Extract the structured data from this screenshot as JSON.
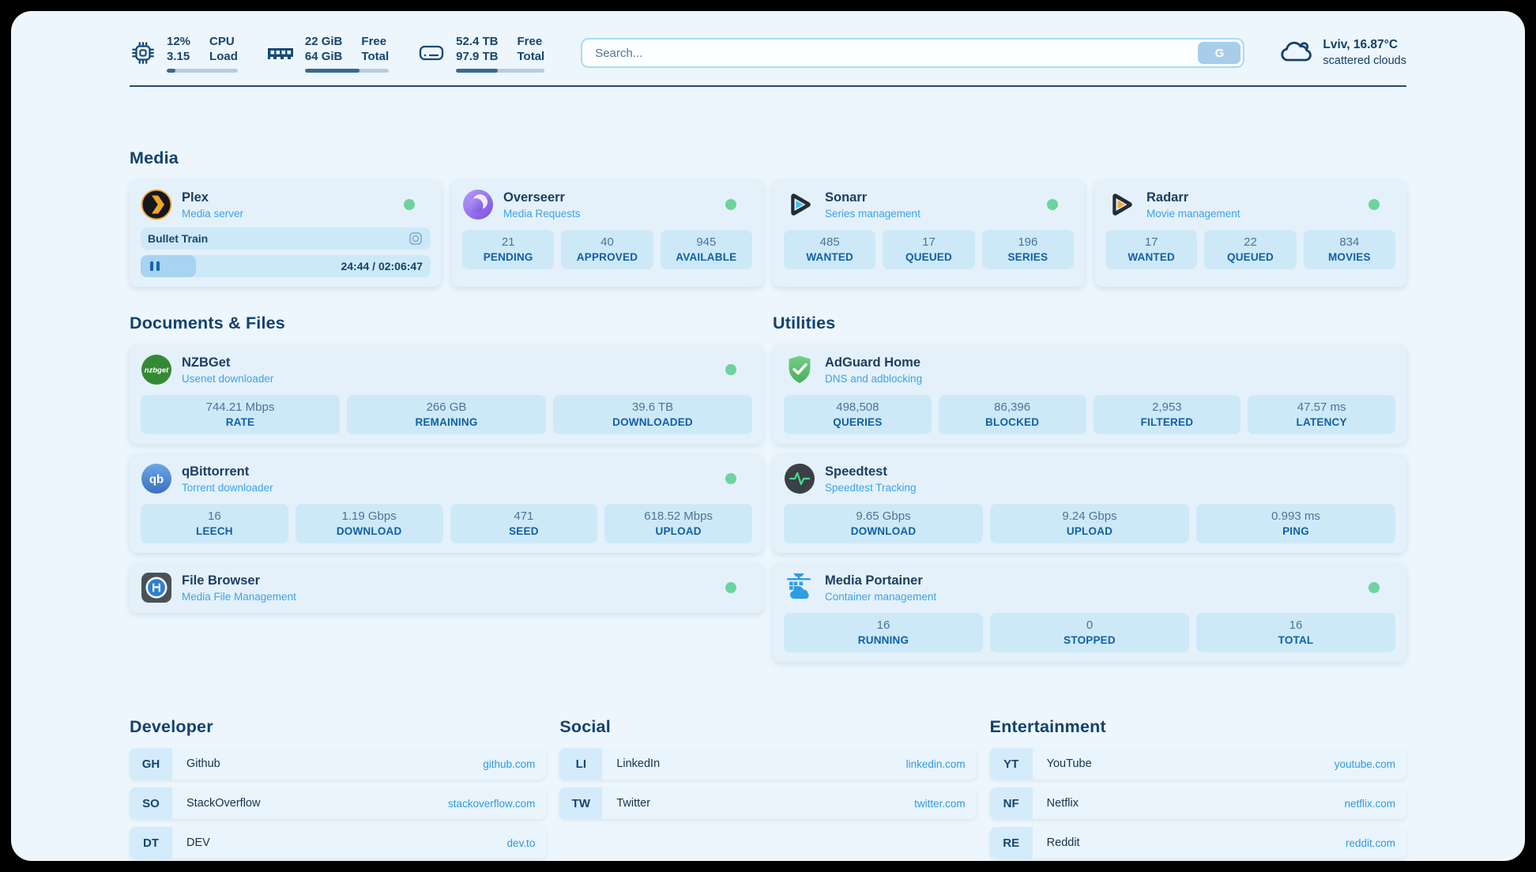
{
  "colors": {
    "page_bg": "#edf6fc",
    "card_bg": "#e4f1fa",
    "pill_bg": "#cde9f8",
    "accent_navy": "#16456f",
    "subtitle_blue": "#3ea2e8",
    "link_blue": "#2d9ae3",
    "online_green": "#6cd49c",
    "progress_fill": "#39688f"
  },
  "header": {
    "system_stats": [
      {
        "id": "cpu",
        "values": [
          "12%",
          "3.15"
        ],
        "labels": [
          "CPU",
          "Load"
        ],
        "progress_pct": 12
      },
      {
        "id": "memory",
        "values": [
          "22 GiB",
          "64 GiB"
        ],
        "labels": [
          "Free",
          "Total"
        ],
        "progress_pct": 65
      },
      {
        "id": "disk",
        "values": [
          "52.4 TB",
          "97.9 TB"
        ],
        "labels": [
          "Free",
          "Total"
        ],
        "progress_pct": 47
      }
    ],
    "search": {
      "placeholder": "Search...",
      "button_label": "G"
    },
    "weather": {
      "location_temp": "Lviv, 16.87°C",
      "condition": "scattered clouds"
    }
  },
  "sections": {
    "media": {
      "title": "Media",
      "apps": [
        {
          "name": "Plex",
          "subtitle": "Media server",
          "online": true,
          "now_playing": {
            "title": "Bullet Train",
            "time": "24:44 / 02:06:47",
            "progress_pct": 19
          }
        },
        {
          "name": "Overseerr",
          "subtitle": "Media Requests",
          "online": true,
          "stats": [
            {
              "value": "21",
              "label": "PENDING"
            },
            {
              "value": "40",
              "label": "APPROVED"
            },
            {
              "value": "945",
              "label": "AVAILABLE"
            }
          ]
        },
        {
          "name": "Sonarr",
          "subtitle": "Series management",
          "online": true,
          "stats": [
            {
              "value": "485",
              "label": "WANTED"
            },
            {
              "value": "17",
              "label": "QUEUED"
            },
            {
              "value": "196",
              "label": "SERIES"
            }
          ]
        },
        {
          "name": "Radarr",
          "subtitle": "Movie management",
          "online": true,
          "stats": [
            {
              "value": "17",
              "label": "WANTED"
            },
            {
              "value": "22",
              "label": "QUEUED"
            },
            {
              "value": "834",
              "label": "MOVIES"
            }
          ]
        }
      ]
    },
    "documents": {
      "title": "Documents & Files",
      "apps": [
        {
          "name": "NZBGet",
          "subtitle": "Usenet downloader",
          "online": true,
          "icon_text": "nzbget",
          "stats": [
            {
              "value": "744.21 Mbps",
              "label": "RATE"
            },
            {
              "value": "266 GB",
              "label": "REMAINING"
            },
            {
              "value": "39.6 TB",
              "label": "DOWNLOADED"
            }
          ]
        },
        {
          "name": "qBittorrent",
          "subtitle": "Torrent downloader",
          "online": true,
          "icon_text": "qb",
          "stats": [
            {
              "value": "16",
              "label": "LEECH"
            },
            {
              "value": "1.19 Gbps",
              "label": "DOWNLOAD"
            },
            {
              "value": "471",
              "label": "SEED"
            },
            {
              "value": "618.52 Mbps",
              "label": "UPLOAD"
            }
          ]
        },
        {
          "name": "File Browser",
          "subtitle": "Media File Management",
          "online": true
        }
      ]
    },
    "utilities": {
      "title": "Utilities",
      "apps": [
        {
          "name": "AdGuard Home",
          "subtitle": "DNS and adblocking",
          "online": false,
          "stats": [
            {
              "value": "498,508",
              "label": "QUERIES"
            },
            {
              "value": "86,396",
              "label": "BLOCKED"
            },
            {
              "value": "2,953",
              "label": "FILTERED"
            },
            {
              "value": "47.57 ms",
              "label": "LATENCY"
            }
          ]
        },
        {
          "name": "Speedtest",
          "subtitle": "Speedtest Tracking",
          "online": false,
          "stats": [
            {
              "value": "9.65 Gbps",
              "label": "DOWNLOAD"
            },
            {
              "value": "9.24 Gbps",
              "label": "UPLOAD"
            },
            {
              "value": "0.993 ms",
              "label": "PING"
            }
          ]
        },
        {
          "name": "Media Portainer",
          "subtitle": "Container management",
          "online": true,
          "stats": [
            {
              "value": "16",
              "label": "RUNNING"
            },
            {
              "value": "0",
              "label": "STOPPED"
            },
            {
              "value": "16",
              "label": "TOTAL"
            }
          ]
        }
      ]
    },
    "bookmarks": [
      {
        "title": "Developer",
        "links": [
          {
            "abbr": "GH",
            "name": "Github",
            "url": "github.com"
          },
          {
            "abbr": "SO",
            "name": "StackOverflow",
            "url": "stackoverflow.com"
          },
          {
            "abbr": "DT",
            "name": "DEV",
            "url": "dev.to"
          }
        ]
      },
      {
        "title": "Social",
        "links": [
          {
            "abbr": "LI",
            "name": "LinkedIn",
            "url": "linkedin.com"
          },
          {
            "abbr": "TW",
            "name": "Twitter",
            "url": "twitter.com"
          }
        ]
      },
      {
        "title": "Entertainment",
        "links": [
          {
            "abbr": "YT",
            "name": "YouTube",
            "url": "youtube.com"
          },
          {
            "abbr": "NF",
            "name": "Netflix",
            "url": "netflix.com"
          },
          {
            "abbr": "RE",
            "name": "Reddit",
            "url": "reddit.com"
          }
        ]
      }
    ]
  }
}
